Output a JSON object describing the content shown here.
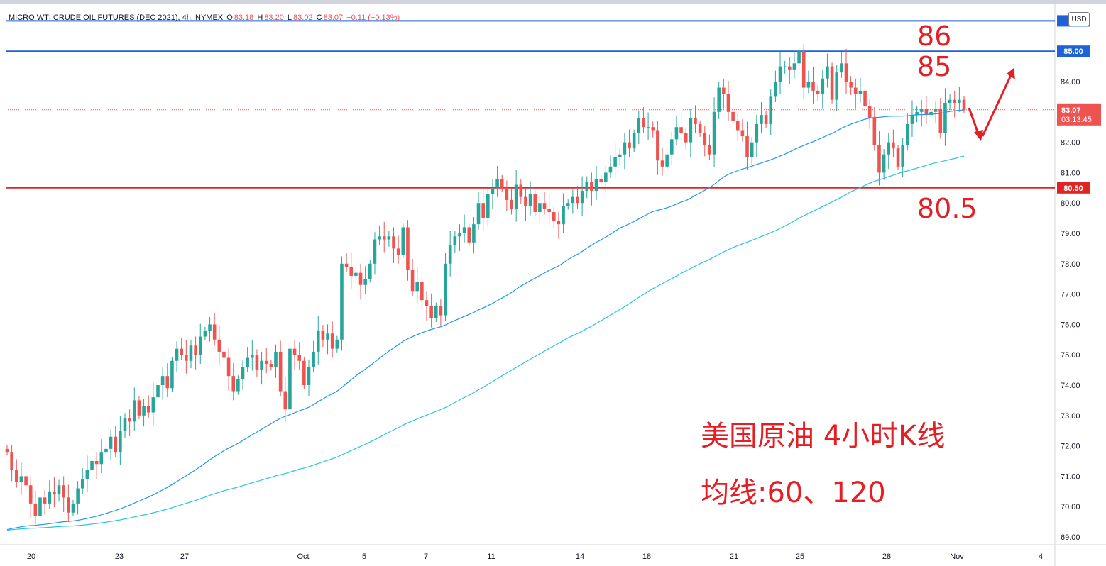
{
  "legend": {
    "symbol": "MICRO WTI CRUDE OIL FUTURES (DEC 2021), 4h, NYMEX",
    "o_label": "O",
    "o_value": "83.18",
    "h_label": "H",
    "h_value": "83.20",
    "l_label": "L",
    "l_value": "83.02",
    "c_label": "C",
    "c_value": "83.07",
    "change": "−0.11 (−0.13%)"
  },
  "currency_badge": "USD",
  "colors": {
    "up": "#26a69a",
    "down": "#ef5350",
    "ma60": "#2196f3",
    "ma120": "#26c6da",
    "blue_level": "#1e62d6",
    "red_level": "#e02424",
    "annotation": "#e31e24"
  },
  "chart_data": {
    "type": "candlestick",
    "title": "",
    "ylim": [
      68.8,
      86.4
    ],
    "y_ticks": [
      "69.00",
      "70.00",
      "71.00",
      "72.00",
      "73.00",
      "74.00",
      "75.00",
      "76.00",
      "77.00",
      "78.00",
      "79.00",
      "80.00",
      "81.00",
      "82.00",
      "83.00",
      "84.00"
    ],
    "x_ticks": [
      "20",
      "23",
      "27",
      "Oct",
      "5",
      "7",
      "11",
      "14",
      "18",
      "21",
      "25",
      "28",
      "Nov",
      "4"
    ],
    "current_price": {
      "value": "83.07",
      "countdown": "03:13:45",
      "price": 83.07
    },
    "horizontal_levels": [
      {
        "price": 86.0,
        "label": "86",
        "color": "blue"
      },
      {
        "price": 85.0,
        "label": "85.00",
        "color": "blue"
      },
      {
        "price": 80.5,
        "label": "80.50",
        "color": "red"
      }
    ],
    "closes": [
      71.8,
      71.2,
      70.8,
      71.0,
      70.7,
      70.1,
      69.7,
      70.3,
      70.1,
      70.5,
      70.4,
      70.7,
      70.3,
      69.8,
      70.1,
      70.6,
      70.9,
      71.2,
      71.5,
      71.4,
      71.8,
      71.9,
      72.3,
      71.8,
      72.5,
      72.9,
      72.8,
      73.5,
      73.0,
      73.3,
      73.1,
      73.6,
      74.0,
      74.3,
      73.9,
      74.8,
      75.2,
      75.0,
      74.8,
      75.3,
      75.0,
      75.6,
      75.8,
      76.0,
      75.5,
      75.1,
      74.9,
      74.3,
      73.8,
      74.2,
      74.6,
      74.9,
      75.0,
      74.5,
      74.8,
      74.7,
      74.6,
      75.1,
      73.8,
      73.2,
      75.2,
      75.0,
      74.8,
      74.0,
      74.6,
      75.1,
      75.8,
      75.5,
      75.7,
      75.2,
      75.5,
      78.0,
      77.9,
      77.6,
      77.7,
      77.3,
      77.5,
      78.0,
      78.8,
      78.9,
      78.8,
      78.9,
      78.5,
      78.3,
      79.2,
      77.8,
      77.1,
      77.4,
      76.8,
      76.6,
      76.2,
      76.6,
      76.3,
      78.0,
      78.6,
      78.9,
      79.0,
      79.2,
      78.7,
      79.3,
      80.0,
      79.5,
      80.3,
      80.5,
      80.8,
      80.5,
      80.1,
      79.8,
      80.6,
      80.2,
      79.9,
      80.3,
      79.7,
      80.0,
      79.8,
      79.7,
      79.4,
      79.3,
      79.9,
      80.0,
      80.2,
      80.0,
      80.4,
      80.7,
      80.4,
      80.8,
      80.7,
      81.0,
      81.2,
      81.5,
      81.6,
      82.0,
      81.8,
      82.3,
      82.8,
      82.5,
      82.5,
      82.4,
      81.4,
      81.2,
      81.6,
      82.1,
      82.5,
      82.3,
      82.0,
      82.8,
      82.6,
      82.3,
      81.9,
      81.6,
      83.0,
      83.8,
      83.6,
      83.0,
      82.7,
      82.4,
      82.2,
      81.5,
      82.0,
      82.6,
      82.9,
      82.6,
      83.5,
      84.0,
      84.5,
      84.5,
      84.4,
      84.6,
      85.0,
      83.8,
      84.0,
      83.7,
      83.6,
      84.1,
      84.5,
      83.4,
      84.3,
      84.6,
      84.0,
      83.8,
      83.6,
      83.7,
      83.2,
      82.8,
      81.9,
      81.0,
      81.6,
      82.0,
      81.8,
      81.2,
      81.9,
      82.6,
      82.9,
      83.0,
      83.1,
      82.9,
      83.0,
      83.1,
      82.3,
      83.3,
      83.4,
      83.3,
      83.4,
      83.07
    ],
    "annotations": {
      "level_86": "86",
      "level_85": "85",
      "level_80_5": "80.5",
      "line1": "美国原油 4小时K线",
      "line2": "均线:60、120"
    }
  }
}
